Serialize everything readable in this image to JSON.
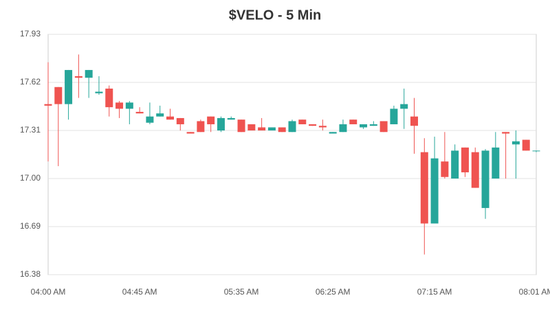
{
  "chart_data": {
    "type": "candlestick",
    "title": "$VELO - 5 Min",
    "categories": [
      "04:00 AM",
      null,
      null,
      null,
      null,
      null,
      null,
      null,
      null,
      "04:45 AM",
      null,
      null,
      null,
      null,
      null,
      null,
      null,
      null,
      null,
      "05:35 AM",
      null,
      null,
      null,
      null,
      null,
      null,
      null,
      null,
      "06:25 AM",
      null,
      null,
      null,
      null,
      null,
      null,
      null,
      null,
      null,
      "07:15 AM",
      null,
      null,
      null,
      null,
      null,
      null,
      null,
      null,
      null,
      "08:01 AM"
    ],
    "open": [
      17.48,
      17.59,
      17.48,
      17.66,
      17.65,
      17.55,
      17.58,
      17.49,
      17.45,
      17.43,
      17.36,
      17.4,
      17.4,
      17.39,
      17.3,
      17.37,
      17.4,
      17.31,
      17.38,
      17.38,
      17.35,
      17.33,
      17.31,
      17.33,
      17.3,
      17.38,
      17.35,
      17.34,
      17.29,
      17.3,
      17.38,
      17.33,
      17.34,
      17.37,
      17.35,
      17.45,
      17.4,
      17.17,
      16.71,
      17.11,
      17.0,
      17.2,
      17.17,
      16.81,
      17.0,
      17.3,
      17.22,
      17.25,
      17.18
    ],
    "high": [
      17.75,
      17.59,
      17.7,
      17.8,
      17.7,
      17.66,
      17.6,
      17.5,
      17.5,
      17.46,
      17.49,
      17.47,
      17.45,
      17.39,
      17.3,
      17.38,
      17.4,
      17.4,
      17.4,
      17.38,
      17.35,
      17.39,
      17.33,
      17.33,
      17.38,
      17.38,
      17.35,
      17.38,
      17.3,
      17.38,
      17.38,
      17.35,
      17.37,
      17.37,
      17.47,
      17.58,
      17.52,
      17.26,
      17.27,
      17.3,
      17.22,
      17.2,
      17.2,
      17.19,
      17.3,
      17.3,
      17.31,
      17.25,
      17.18
    ],
    "low": [
      17.11,
      17.08,
      17.38,
      17.52,
      17.52,
      17.54,
      17.4,
      17.39,
      17.35,
      17.42,
      17.35,
      17.4,
      17.38,
      17.31,
      17.29,
      17.3,
      17.3,
      17.3,
      17.38,
      17.3,
      17.31,
      17.31,
      17.31,
      17.3,
      17.3,
      17.35,
      17.34,
      17.31,
      17.29,
      17.3,
      17.35,
      17.32,
      17.34,
      17.3,
      17.35,
      17.32,
      17.16,
      16.51,
      16.71,
      17.0,
      17.0,
      17.01,
      16.94,
      16.74,
      17.0,
      17.0,
      17.0,
      17.18,
      17.17
    ],
    "close": [
      17.47,
      17.48,
      17.7,
      17.65,
      17.7,
      17.56,
      17.46,
      17.45,
      17.49,
      17.42,
      17.4,
      17.42,
      17.38,
      17.35,
      17.29,
      17.3,
      17.35,
      17.39,
      17.39,
      17.3,
      17.31,
      17.31,
      17.33,
      17.3,
      17.37,
      17.35,
      17.34,
      17.33,
      17.3,
      17.35,
      17.35,
      17.35,
      17.35,
      17.3,
      17.45,
      17.48,
      17.34,
      16.71,
      17.13,
      17.01,
      17.18,
      17.04,
      16.94,
      17.18,
      17.2,
      17.29,
      17.24,
      17.18,
      17.18
    ],
    "up_color": "#26a69a",
    "down_color": "#ef5350",
    "ylim": [
      16.38,
      17.93
    ],
    "yticks": [
      16.38,
      16.69,
      {
        "value": 17.0,
        "label": "17.00"
      },
      17.31,
      17.62,
      17.93
    ],
    "grid": true
  }
}
